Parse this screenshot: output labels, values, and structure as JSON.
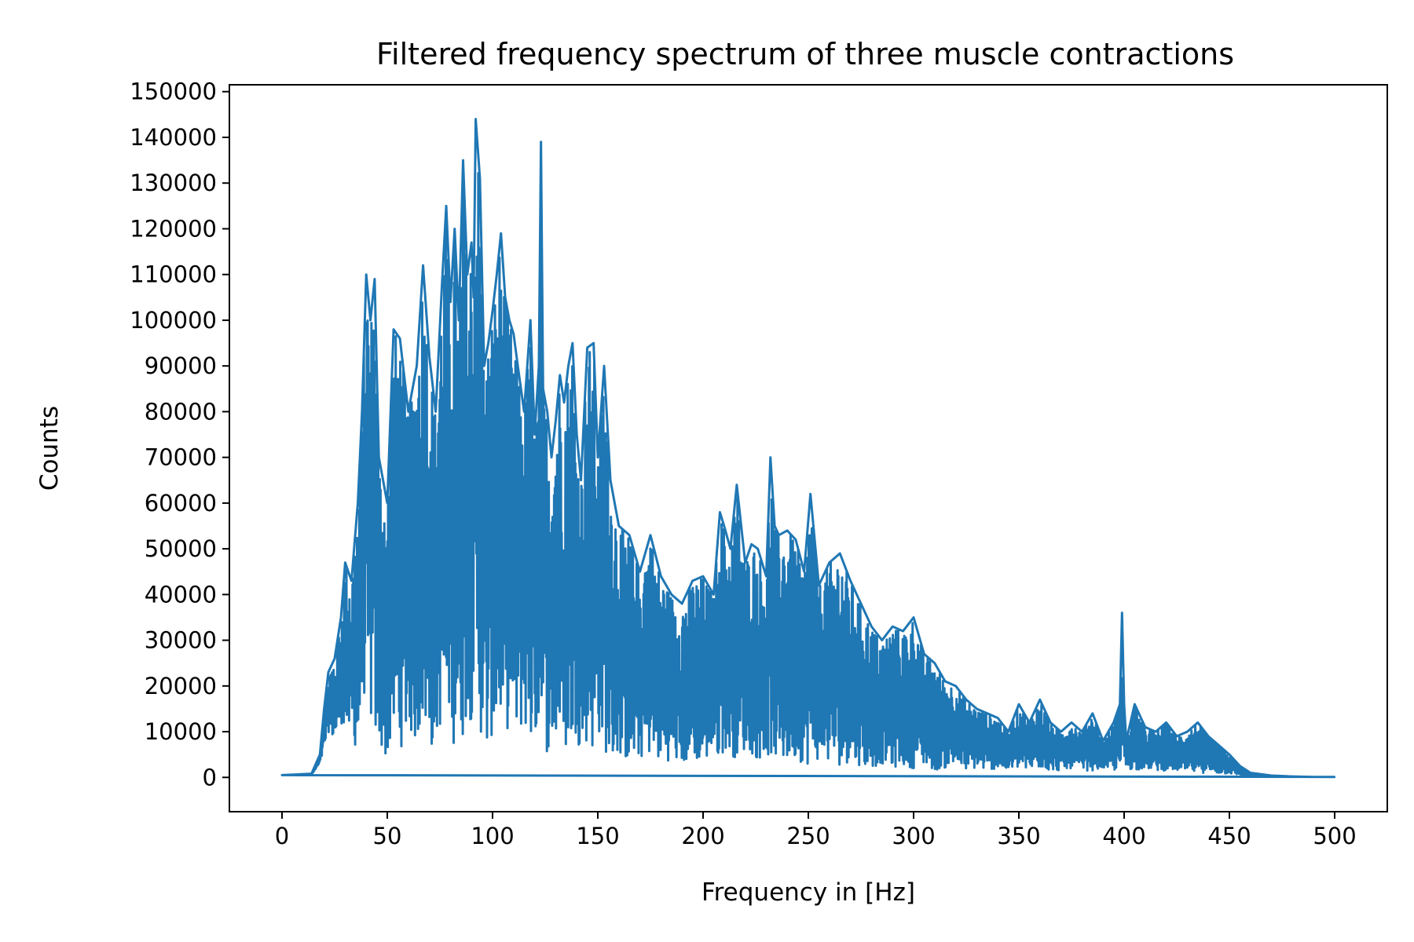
{
  "chart_data": {
    "type": "line",
    "title": "Filtered frequency spectrum of three muscle contractions",
    "xlabel": "Frequency in [Hz]",
    "ylabel": "Counts",
    "xlim": [
      -25,
      525
    ],
    "ylim": [
      -7500,
      151500
    ],
    "xticks": [
      0,
      50,
      100,
      150,
      200,
      250,
      300,
      350,
      400,
      450,
      500
    ],
    "yticks": [
      0,
      10000,
      20000,
      30000,
      40000,
      50000,
      60000,
      70000,
      80000,
      90000,
      100000,
      110000,
      120000,
      130000,
      140000,
      150000
    ],
    "grid": false,
    "color": "#1f77b4",
    "series": [
      {
        "x": [
          0,
          14,
          18,
          20,
          22,
          25,
          28,
          30,
          33,
          36,
          38,
          40,
          42,
          44,
          46,
          50,
          53,
          56,
          60,
          64,
          67,
          70,
          73,
          76,
          78,
          80,
          82,
          84,
          86,
          88,
          90,
          91,
          92,
          94,
          96,
          98,
          100,
          102,
          104,
          106,
          108,
          110,
          112,
          115,
          118,
          120,
          122,
          123,
          124,
          126,
          128,
          130,
          132,
          134,
          136,
          138,
          140,
          142,
          145,
          148,
          150,
          153,
          156,
          160,
          165,
          170,
          175,
          180,
          185,
          190,
          195,
          200,
          205,
          208,
          210,
          213,
          216,
          220,
          223,
          226,
          230,
          232,
          234,
          236,
          240,
          244,
          248,
          251,
          255,
          260,
          265,
          270,
          275,
          280,
          285,
          290,
          295,
          300,
          305,
          310,
          315,
          320,
          325,
          330,
          335,
          340,
          345,
          350,
          355,
          360,
          365,
          370,
          375,
          380,
          385,
          390,
          395,
          398,
          399,
          400,
          401,
          405,
          410,
          415,
          420,
          425,
          430,
          435,
          440,
          445,
          450,
          455,
          460,
          470,
          480,
          490,
          500
        ],
        "low": [
          500,
          500,
          3000,
          6000,
          10000,
          8000,
          12000,
          10000,
          9000,
          5000,
          15000,
          20000,
          12000,
          8000,
          6000,
          4000,
          8000,
          6000,
          10000,
          7000,
          12000,
          5000,
          8000,
          12000,
          6000,
          15000,
          5000,
          10000,
          8000,
          14000,
          12000,
          20000,
          15000,
          10000,
          6000,
          4000,
          10000,
          8000,
          12000,
          6000,
          14000,
          10000,
          8000,
          12000,
          6000,
          10000,
          6000,
          20000,
          10000,
          5000,
          8000,
          6000,
          10000,
          4000,
          8000,
          6000,
          10000,
          4000,
          8000,
          5000,
          10000,
          6000,
          3000,
          5000,
          3000,
          4000,
          5000,
          3000,
          4000,
          2500,
          4000,
          3000,
          5000,
          4000,
          6000,
          5000,
          4000,
          6000,
          5000,
          4000,
          3500,
          5000,
          4000,
          3000,
          3000,
          4000,
          3000,
          2500,
          4000,
          3000,
          2500,
          3500,
          2500,
          2000,
          3000,
          2000,
          2500,
          2000,
          2500,
          1500,
          2000,
          2500,
          1500,
          2000,
          1500,
          2000,
          1500,
          2000,
          1500,
          2000,
          1500,
          1500,
          2000,
          1500,
          1500,
          2000,
          1500,
          1500,
          2000,
          3000,
          2000,
          1500,
          2000,
          1500,
          1500,
          1500,
          1000,
          1000,
          1000,
          800,
          800,
          500,
          300,
          200,
          100,
          100,
          100
        ],
        "high": [
          500,
          800,
          5000,
          15000,
          23000,
          26000,
          35000,
          47000,
          43000,
          60000,
          80000,
          110000,
          100000,
          109000,
          70000,
          60000,
          98000,
          96000,
          80000,
          90000,
          112000,
          92000,
          80000,
          108000,
          125000,
          104000,
          120000,
          100000,
          135000,
          110000,
          117000,
          105000,
          144000,
          131000,
          90000,
          95000,
          102000,
          110000,
          119000,
          105000,
          100000,
          97000,
          90000,
          80000,
          100000,
          75000,
          90000,
          139000,
          85000,
          80000,
          70000,
          78000,
          88000,
          82000,
          90000,
          95000,
          75000,
          65000,
          94000,
          95000,
          70000,
          90000,
          65000,
          55000,
          53000,
          45000,
          53000,
          44000,
          40000,
          38000,
          43000,
          44000,
          40000,
          58000,
          55000,
          50000,
          64000,
          47000,
          51000,
          50000,
          44000,
          70000,
          55000,
          53000,
          54000,
          52000,
          45000,
          62000,
          42000,
          47000,
          49000,
          43000,
          38000,
          33000,
          30000,
          33000,
          32000,
          35000,
          27000,
          25000,
          21000,
          20000,
          17000,
          15000,
          14000,
          13000,
          10000,
          16000,
          12000,
          17000,
          12000,
          10000,
          12000,
          10000,
          14000,
          8000,
          12000,
          16000,
          36000,
          16000,
          8000,
          16000,
          11000,
          10000,
          12000,
          9000,
          10000,
          12000,
          9000,
          7000,
          5000,
          2500,
          1000,
          400,
          200,
          100,
          100
        ]
      }
    ]
  }
}
